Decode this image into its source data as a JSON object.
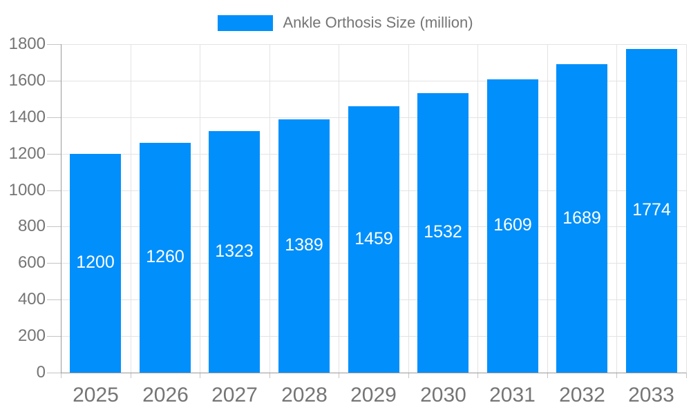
{
  "legend": {
    "label": "Ankle Orthosis Size (million)"
  },
  "colors": {
    "bar": "#008FFB",
    "axis_line": "#9a9a9a",
    "grid_line": "#e3e3e3",
    "tick": "#c4c4c4",
    "axis_text": "#757575",
    "value_label_text": "#ffffff",
    "background": "#ffffff"
  },
  "chart_data": {
    "type": "bar",
    "title": "Ankle Orthosis Size (million)",
    "categories": [
      "2025",
      "2026",
      "2027",
      "2028",
      "2029",
      "2030",
      "2031",
      "2032",
      "2033"
    ],
    "series": [
      {
        "name": "Ankle Orthosis Size (million)",
        "values": [
          1200,
          1260,
          1323,
          1389,
          1459,
          1532,
          1609,
          1689,
          1774
        ]
      }
    ],
    "xlabel": "",
    "ylabel": "",
    "ylim": [
      0,
      1800
    ],
    "ytick_step": 200,
    "yticks": [
      0,
      200,
      400,
      600,
      800,
      1000,
      1200,
      1400,
      1600,
      1800
    ],
    "grid": true,
    "legend_position": "top",
    "value_labels": "inside-center"
  }
}
